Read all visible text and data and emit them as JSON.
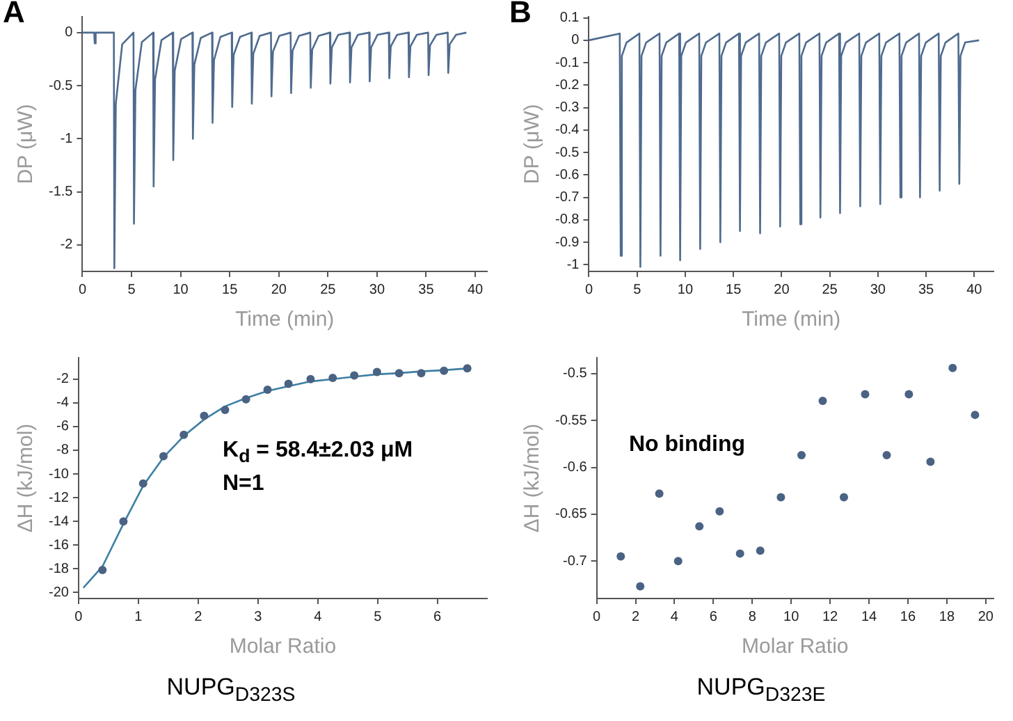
{
  "chart_data": [
    {
      "type": "line",
      "title": "A",
      "xlabel": "Time (min)",
      "ylabel": "DP (μW)",
      "xlim": [
        0,
        41.2
      ],
      "xticks": [
        0,
        5,
        10,
        15,
        20,
        25,
        30,
        35,
        40
      ],
      "ylim": [
        -2.25,
        0.15
      ],
      "yticks": [
        0,
        -0.5,
        -1,
        -1.5,
        -2
      ],
      "marker": "none",
      "series": [
        {
          "color": "#4f6b8f",
          "x": [
            0,
            1.2,
            1.25,
            1.35,
            3.2,
            3.25,
            3.4,
            4.05,
            5.2,
            5.25,
            5.4,
            6.05,
            7.2,
            7.25,
            7.4,
            8.05,
            9.2,
            9.25,
            9.4,
            10.05,
            11.2,
            11.25,
            11.4,
            12.05,
            13.2,
            13.25,
            13.4,
            14.05,
            15.2,
            15.25,
            15.4,
            16.05,
            17.2,
            17.25,
            17.4,
            18.05,
            19.2,
            19.25,
            19.4,
            20.05,
            21.2,
            21.25,
            21.4,
            22.05,
            23.2,
            23.25,
            23.4,
            24.05,
            25.2,
            25.25,
            25.4,
            26.05,
            27.2,
            27.25,
            27.4,
            28.05,
            29.2,
            29.25,
            29.4,
            30.05,
            31.2,
            31.25,
            31.4,
            32.05,
            33.2,
            33.25,
            33.4,
            34.05,
            35.2,
            35.25,
            35.4,
            36.05,
            37.2,
            37.25,
            37.4,
            38.05,
            39.1
          ],
          "values": [
            0,
            0,
            -0.1,
            0,
            0,
            -2.22,
            -0.67,
            -0.11,
            0,
            -1.8,
            -0.54,
            -0.09,
            0,
            -1.45,
            -0.44,
            -0.07,
            0,
            -1.2,
            -0.36,
            -0.06,
            0,
            -1.0,
            -0.3,
            -0.05,
            0,
            -0.85,
            -0.26,
            -0.04,
            0,
            -0.7,
            -0.21,
            -0.04,
            0,
            -0.67,
            -0.2,
            -0.03,
            0,
            -0.6,
            -0.18,
            -0.03,
            0,
            -0.57,
            -0.17,
            -0.03,
            0,
            -0.52,
            -0.16,
            -0.03,
            0,
            -0.48,
            -0.14,
            -0.02,
            0,
            -0.47,
            -0.14,
            -0.02,
            0,
            -0.46,
            -0.14,
            -0.02,
            0,
            -0.43,
            -0.13,
            -0.02,
            0,
            -0.42,
            -0.13,
            -0.02,
            0,
            -0.4,
            -0.12,
            -0.02,
            0,
            -0.38,
            -0.11,
            -0.02,
            0
          ]
        }
      ]
    },
    {
      "type": "line",
      "title": "B",
      "xlabel": "Time (min)",
      "ylabel": "DP (μW)",
      "xlim": [
        0,
        42
      ],
      "xticks": [
        0,
        5,
        10,
        15,
        20,
        25,
        30,
        35,
        40
      ],
      "ylim": [
        -1.03,
        0.105
      ],
      "yticks": [
        0.1,
        0,
        -0.1,
        -0.2,
        -0.3,
        -0.4,
        -0.5,
        -0.6,
        -0.7,
        -0.8,
        -0.9,
        -1
      ],
      "marker": "none",
      "series": [
        {
          "color": "#4f6b8f",
          "x": [
            0,
            3.2,
            3.3,
            3.42,
            3.9,
            5.24,
            5.34,
            5.46,
            5.94,
            7.33,
            7.43,
            7.55,
            8.03,
            9.37,
            9.47,
            9.59,
            10.07,
            11.45,
            11.55,
            11.67,
            12.15,
            13.54,
            13.64,
            13.76,
            14.24,
            15.58,
            15.68,
            15.8,
            16.28,
            17.67,
            17.77,
            17.89,
            18.37,
            19.75,
            19.85,
            19.97,
            20.45,
            21.84,
            21.94,
            22.06,
            22.54,
            23.93,
            24.03,
            24.15,
            24.63,
            25.97,
            26.07,
            26.19,
            26.67,
            28.06,
            28.16,
            28.28,
            28.76,
            30.14,
            30.24,
            30.36,
            30.84,
            32.23,
            32.33,
            32.45,
            32.93,
            34.27,
            34.37,
            34.49,
            34.97,
            36.31,
            36.41,
            36.53,
            37.01,
            38.35,
            38.45,
            38.57,
            39.05,
            40.5
          ],
          "values": [
            0,
            0.03,
            -0.96,
            -0.07,
            -0.01,
            0.03,
            -1.01,
            -0.07,
            -0.01,
            0.03,
            -0.96,
            -0.07,
            -0.01,
            0.03,
            -0.98,
            -0.07,
            -0.01,
            0.03,
            -0.93,
            -0.07,
            -0.01,
            0.03,
            -0.9,
            -0.07,
            -0.01,
            0.03,
            -0.85,
            -0.07,
            -0.01,
            0.03,
            -0.86,
            -0.07,
            -0.01,
            0.03,
            -0.83,
            -0.07,
            -0.01,
            0.03,
            -0.82,
            -0.07,
            -0.01,
            0.03,
            -0.79,
            -0.07,
            -0.01,
            0.03,
            -0.77,
            -0.07,
            -0.01,
            0.03,
            -0.74,
            -0.07,
            -0.01,
            0.03,
            -0.73,
            -0.07,
            -0.01,
            0.03,
            -0.7,
            -0.07,
            -0.01,
            0.03,
            -0.7,
            -0.07,
            -0.01,
            0.03,
            -0.67,
            -0.07,
            -0.01,
            0.03,
            -0.64,
            -0.07,
            -0.01,
            0
          ]
        }
      ]
    },
    {
      "type": "scatter",
      "xlabel": "Molar Ratio",
      "ylabel": "ΔH (kJ/mol)",
      "xlim": [
        0,
        6.83
      ],
      "xticks": [
        0,
        1,
        2,
        3,
        4,
        5,
        6
      ],
      "ylim": [
        -20.5,
        -0.2
      ],
      "yticks": [
        -2,
        -4,
        -6,
        -8,
        -10,
        -12,
        -14,
        -16,
        -18,
        -20
      ],
      "annotations": [
        "K$_{d}$ = 58.4±2.03 μM",
        "N=1",
        "NUPG$_{D323S}$"
      ],
      "series": [
        {
          "type": "scatter",
          "marker": "circle",
          "color": "#4a6283",
          "x": [
            0.4,
            0.75,
            1.08,
            1.42,
            1.76,
            2.1,
            2.45,
            2.8,
            3.16,
            3.51,
            3.88,
            4.25,
            4.61,
            4.99,
            5.36,
            5.73,
            6.11,
            6.5
          ],
          "values": [
            -18.1,
            -14.0,
            -10.8,
            -8.5,
            -6.7,
            -5.1,
            -4.6,
            -3.7,
            -2.9,
            -2.4,
            -2.0,
            -1.9,
            -1.7,
            -1.4,
            -1.5,
            -1.5,
            -1.3,
            -1.1
          ]
        },
        {
          "type": "line",
          "marker": "none",
          "color": "#3d7fa3",
          "x": [
            0.08,
            0.4,
            0.75,
            1.08,
            1.42,
            1.76,
            2.1,
            2.45,
            2.8,
            3.16,
            3.51,
            3.88,
            4.25,
            4.61,
            4.99,
            5.36,
            5.73,
            6.11,
            6.5
          ],
          "values": [
            -19.6,
            -17.8,
            -14.2,
            -11.0,
            -8.6,
            -6.8,
            -5.4,
            -4.3,
            -3.6,
            -3.0,
            -2.6,
            -2.2,
            -2.0,
            -1.8,
            -1.6,
            -1.5,
            -1.35,
            -1.25,
            -1.1
          ]
        }
      ]
    },
    {
      "type": "scatter",
      "xlabel": "Molar Ratio",
      "ylabel": "ΔH (kJ/mol)",
      "xlim": [
        0,
        20.4
      ],
      "xticks": [
        0,
        2,
        4,
        6,
        8,
        10,
        12,
        14,
        16,
        18,
        20
      ],
      "ylim": [
        -0.74,
        -0.483
      ],
      "yticks": [
        -0.5,
        -0.55,
        -0.6,
        -0.65,
        -0.7
      ],
      "annotations": [
        "No binding",
        "NUPG$_{D323E}$"
      ],
      "series": [
        {
          "type": "scatter",
          "marker": "circle",
          "color": "#4a6283",
          "x": [
            1.24,
            2.24,
            3.22,
            4.19,
            5.28,
            6.32,
            7.37,
            8.41,
            9.47,
            10.53,
            11.62,
            12.71,
            13.8,
            14.91,
            16.05,
            17.16,
            18.3,
            19.45
          ],
          "values": [
            -0.695,
            -0.727,
            -0.628,
            -0.7,
            -0.663,
            -0.647,
            -0.692,
            -0.689,
            -0.632,
            -0.587,
            -0.529,
            -0.632,
            -0.522,
            -0.587,
            -0.522,
            -0.594,
            -0.494,
            -0.544
          ]
        }
      ]
    }
  ]
}
